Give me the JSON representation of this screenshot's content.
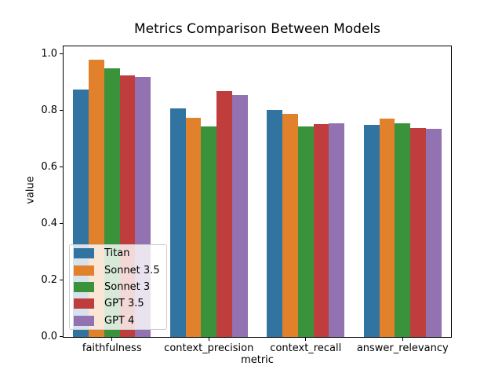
{
  "chart_data": {
    "type": "bar",
    "title": "Metrics Comparison Between Models",
    "xlabel": "metric",
    "ylabel": "value",
    "categories": [
      "faithfulness",
      "context_precision",
      "context_recall",
      "answer_relevancy"
    ],
    "series": [
      {
        "name": "Titan",
        "color": "#3274a1",
        "values": [
          0.876,
          0.808,
          0.804,
          0.751
        ]
      },
      {
        "name": "Sonnet 3.5",
        "color": "#e1812c",
        "values": [
          0.981,
          0.774,
          0.788,
          0.772
        ]
      },
      {
        "name": "Sonnet 3",
        "color": "#3a923a",
        "values": [
          0.95,
          0.746,
          0.746,
          0.755
        ]
      },
      {
        "name": "GPT 3.5",
        "color": "#c03d3e",
        "values": [
          0.926,
          0.87,
          0.753,
          0.739
        ]
      },
      {
        "name": "GPT 4",
        "color": "#9372b2",
        "values": [
          0.921,
          0.857,
          0.756,
          0.736
        ]
      }
    ],
    "ylim": [
      0.0,
      1.028
    ],
    "y_ticks": [
      0.0,
      0.2,
      0.4,
      0.6,
      0.8,
      1.0
    ],
    "grid": false,
    "legend_position": "lower-left",
    "background_color": "#ffffff",
    "axis_color": "#000000"
  }
}
